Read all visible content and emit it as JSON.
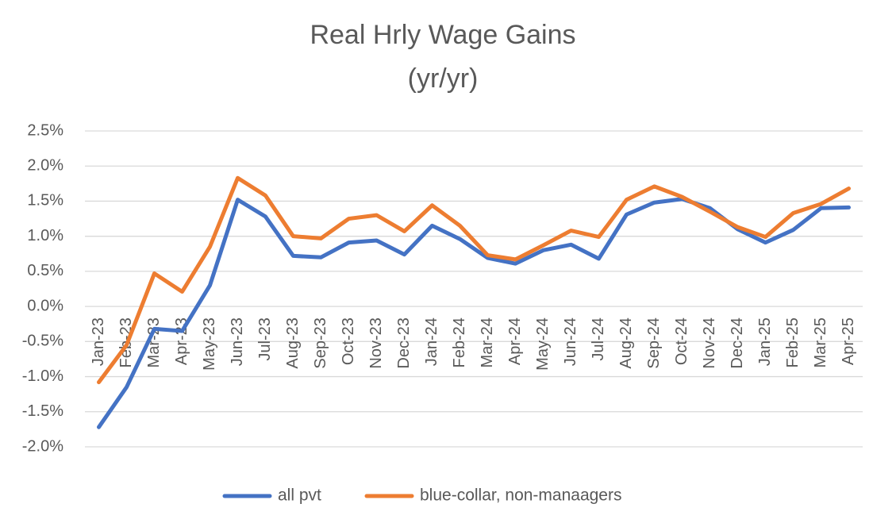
{
  "chart_data": {
    "type": "line",
    "title": "Real Hrly Wage Gains",
    "subtitle": "(yr/yr)",
    "categories": [
      "Jan-23",
      "Feb-23",
      "Mar-23",
      "Apr-23",
      "May-23",
      "Jun-23",
      "Jul-23",
      "Aug-23",
      "Sep-23",
      "Oct-23",
      "Nov-23",
      "Dec-23",
      "Jan-24",
      "Feb-24",
      "Mar-24",
      "Apr-24",
      "May-24",
      "Jun-24",
      "Jul-24",
      "Aug-24",
      "Sep-24",
      "Oct-24",
      "Nov-24",
      "Dec-24",
      "Jan-25",
      "Feb-25",
      "Mar-25",
      "Apr-25"
    ],
    "series": [
      {
        "name": "all pvt",
        "color": "#4472c4",
        "values": [
          -1.72,
          -1.15,
          -0.32,
          -0.35,
          0.3,
          1.52,
          1.28,
          0.72,
          0.7,
          0.91,
          0.94,
          0.74,
          1.15,
          0.96,
          0.69,
          0.61,
          0.8,
          0.88,
          0.68,
          1.31,
          1.48,
          1.53,
          1.4,
          1.1,
          0.91,
          1.09,
          1.4,
          1.41
        ]
      },
      {
        "name": "blue-collar, non-manaagers",
        "color": "#ed7d31",
        "values": [
          -1.08,
          -0.55,
          0.47,
          0.21,
          0.85,
          1.83,
          1.58,
          1.0,
          0.97,
          1.25,
          1.3,
          1.07,
          1.44,
          1.15,
          0.73,
          0.67,
          0.87,
          1.08,
          0.99,
          1.52,
          1.71,
          1.56,
          1.35,
          1.13,
          0.99,
          1.33,
          1.46,
          1.68
        ]
      }
    ],
    "ylim": [
      -2.0,
      2.5
    ],
    "yticks": [
      {
        "value": -2.0,
        "label": "-2.0%"
      },
      {
        "value": -1.5,
        "label": "-1.5%"
      },
      {
        "value": -1.0,
        "label": "-1.0%"
      },
      {
        "value": -0.5,
        "label": "-0.5%"
      },
      {
        "value": 0,
        "label": "0.0%"
      },
      {
        "value": 0.5,
        "label": "0.5%"
      },
      {
        "value": 1.0,
        "label": "1.0%"
      },
      {
        "value": 1.5,
        "label": "1.5%"
      },
      {
        "value": 2.0,
        "label": "2.0%"
      },
      {
        "value": 2.5,
        "label": "2.5%"
      }
    ],
    "grid": true,
    "legend": "bottom"
  }
}
